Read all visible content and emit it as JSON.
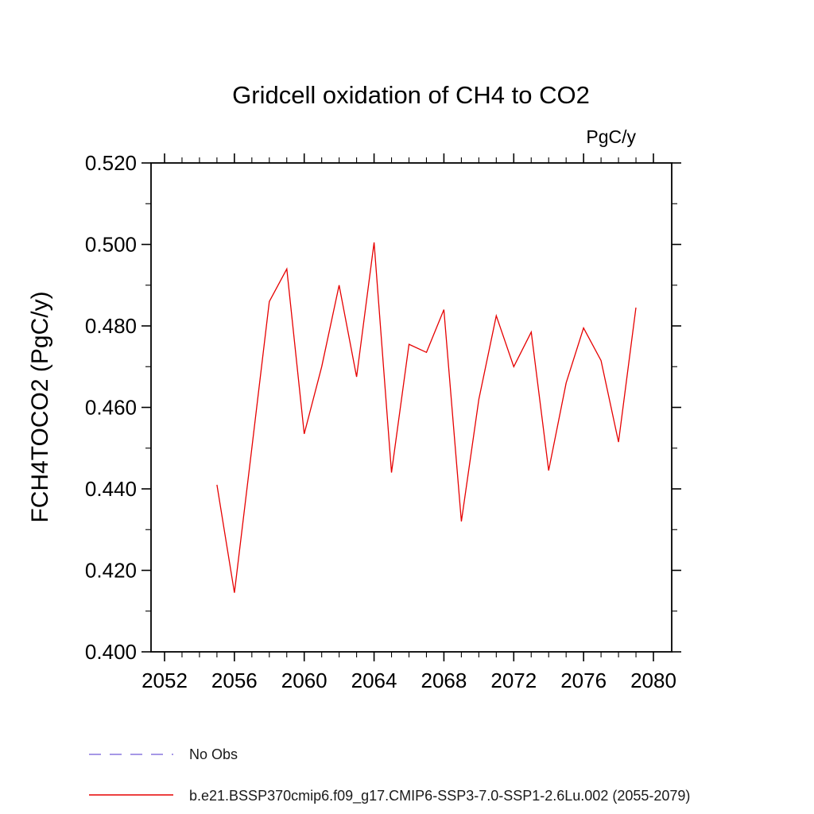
{
  "title": "Gridcell oxidation of CH4 to CO2",
  "units_label": "PgC/y",
  "y_axis_label": "FCH4TOCO2  (PgC/y)",
  "legend": [
    {
      "label": "No Obs",
      "color": "#8877dd",
      "style": "dashed"
    },
    {
      "label": "b.e21.BSSP370cmip6.f09_g17.CMIP6-SSP3-7.0-SSP1-2.6Lu.002 (2055-2079)",
      "color": "#e60000",
      "style": "solid"
    }
  ],
  "chart_data": {
    "type": "line",
    "title": "Gridcell oxidation of CH4 to CO2",
    "xlabel": "",
    "ylabel": "FCH4TOCO2 (PgC/y)",
    "units": "PgC/y",
    "xlim": [
      2052,
      2080
    ],
    "ylim": [
      0.4,
      0.52
    ],
    "x_ticks": [
      2052,
      2056,
      2060,
      2064,
      2068,
      2072,
      2076,
      2080
    ],
    "y_ticks": [
      0.4,
      0.42,
      0.44,
      0.46,
      0.48,
      0.5,
      0.52
    ],
    "grid": false,
    "legend_position": "bottom-left",
    "line_color": "#e60000",
    "x": [
      2055,
      2056,
      2057,
      2058,
      2059,
      2060,
      2061,
      2062,
      2063,
      2064,
      2065,
      2066,
      2067,
      2068,
      2069,
      2070,
      2071,
      2072,
      2073,
      2074,
      2075,
      2076,
      2077,
      2078,
      2079
    ],
    "series": [
      {
        "name": "b.e21.BSSP370cmip6.f09_g17.CMIP6-SSP3-7.0-SSP1-2.6Lu.002 (2055-2079)",
        "values": [
          0.441,
          0.4145,
          0.45,
          0.486,
          0.494,
          0.4535,
          0.47,
          0.49,
          0.4675,
          0.5005,
          0.444,
          0.4755,
          0.4735,
          0.484,
          0.432,
          0.462,
          0.4825,
          0.47,
          0.4785,
          0.4445,
          0.466,
          0.4795,
          0.4715,
          0.4515,
          0.4845
        ]
      }
    ]
  }
}
